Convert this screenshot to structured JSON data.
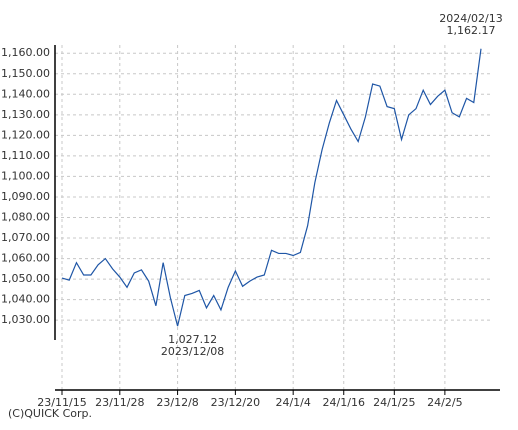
{
  "chart_data": {
    "type": "line",
    "categories": [
      "23/11/15",
      null,
      null,
      null,
      null,
      null,
      null,
      null,
      "23/11/28",
      null,
      null,
      null,
      null,
      null,
      null,
      null,
      "23/12/8",
      null,
      null,
      null,
      null,
      null,
      null,
      null,
      "23/12/20",
      null,
      null,
      null,
      null,
      null,
      null,
      null,
      "24/1/4",
      null,
      null,
      null,
      null,
      null,
      null,
      "24/1/16",
      null,
      null,
      null,
      null,
      null,
      null,
      "24/1/25",
      null,
      null,
      null,
      null,
      null,
      null,
      "24/2/5",
      null,
      null,
      null,
      null,
      null
    ],
    "series": [
      {
        "color": "#1f56a6",
        "values": [
          1050.5,
          1049.5,
          1058,
          1052,
          1052,
          1057,
          1060,
          1055,
          1051,
          1046,
          1053,
          1054.5,
          1049,
          1037,
          1058,
          1041,
          1027.12,
          1042,
          1043,
          1044.5,
          1036,
          1042,
          1035,
          1046,
          1054,
          1046.5,
          1049,
          1051,
          1052,
          1064,
          1062.5,
          1062.5,
          1061.5,
          1063,
          1076,
          1097,
          1113,
          1126,
          1137,
          1130,
          1123,
          1117,
          1129,
          1145,
          1144,
          1134,
          1133,
          1118,
          1130,
          1133,
          1142,
          1135,
          1139,
          1142,
          1131,
          1129,
          1138,
          1136,
          1162.17
        ]
      }
    ],
    "ylim": [
      996,
      1164
    ],
    "yticks": [
      {
        "value": 1030,
        "label": "1,030.00"
      },
      {
        "value": 1040,
        "label": "1,040.00"
      },
      {
        "value": 1050,
        "label": "1,050.00"
      },
      {
        "value": 1060,
        "label": "1,060.00"
      },
      {
        "value": 1070,
        "label": "1,070.00"
      },
      {
        "value": 1080,
        "label": "1,080.00"
      },
      {
        "value": 1090,
        "label": "1,090.00"
      },
      {
        "value": 1100,
        "label": "1,100.00"
      },
      {
        "value": 1110,
        "label": "1,110.00"
      },
      {
        "value": 1120,
        "label": "1,120.00"
      },
      {
        "value": 1130,
        "label": "1,130.00"
      },
      {
        "value": 1140,
        "label": "1,140.00"
      },
      {
        "value": 1150,
        "label": "1,150.00"
      },
      {
        "value": 1160,
        "label": "1,160.00"
      }
    ],
    "grid": true,
    "annotations": [
      {
        "value": "1,027.12",
        "date": "2023/12/08",
        "position": "below"
      },
      {
        "value": "1,162.17",
        "date": "2024/02/13",
        "position": "above"
      }
    ],
    "copyright": "(C)QUICK Corp."
  }
}
